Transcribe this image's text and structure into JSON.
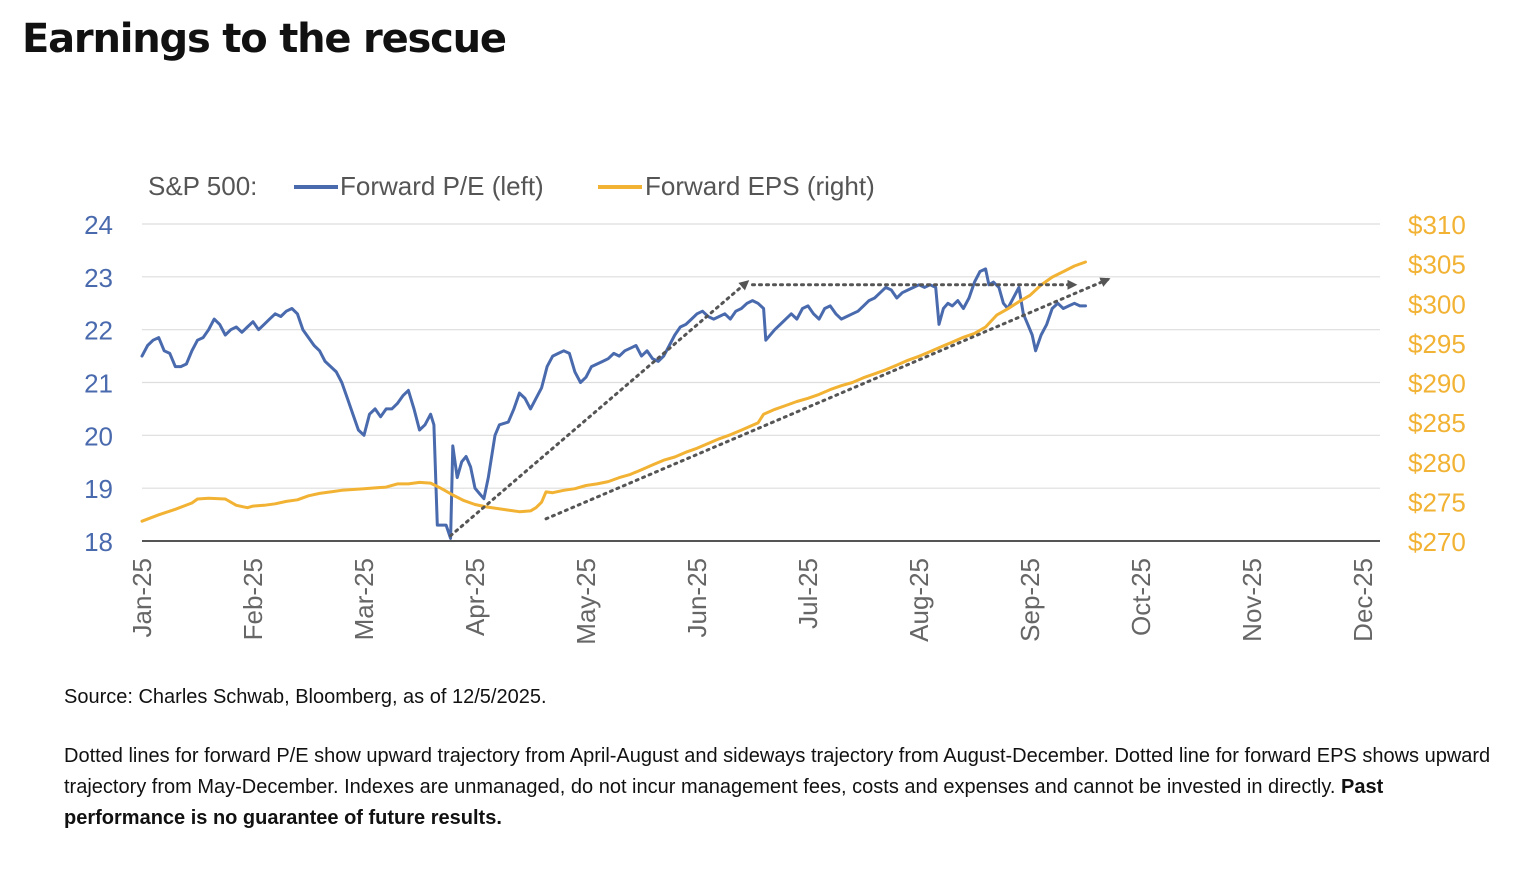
{
  "title": "Earnings to the rescue",
  "chart_data": {
    "type": "line",
    "legend": {
      "prefix": "S&P 500:",
      "placement": "top-left",
      "entries": [
        "Forward P/E (left)",
        "Forward EPS (right)"
      ]
    },
    "x_tick_labels": [
      "Jan-25",
      "Feb-25",
      "Mar-25",
      "Apr-25",
      "May-25",
      "Jun-25",
      "Jul-25",
      "Aug-25",
      "Sep-25",
      "Oct-25",
      "Nov-25",
      "Dec-25"
    ],
    "y_left": {
      "ylim": [
        18,
        24
      ],
      "ticks": [
        18,
        19,
        20,
        21,
        22,
        23,
        24
      ],
      "tick_labels": [
        "18",
        "19",
        "20",
        "21",
        "22",
        "23",
        "24"
      ]
    },
    "y_right": {
      "ylim": [
        270,
        310
      ],
      "ticks": [
        270,
        275,
        280,
        285,
        290,
        295,
        300,
        305,
        310
      ],
      "tick_labels": [
        "$270",
        "$275",
        "$280",
        "$285",
        "$290",
        "$295",
        "$300",
        "$305",
        "$310"
      ]
    },
    "grid": true,
    "colors": {
      "pe": "#4a6aae",
      "eps": "#f2b233",
      "axis_left": "#4a6aae",
      "axis_right": "#f2b233",
      "tick_x": "#666666",
      "grid": "#dddddd",
      "trend": "#555555"
    },
    "series": [
      {
        "name": "Forward P/E (left)",
        "axis": "left",
        "points": [
          [
            0,
            21.5
          ],
          [
            0.05,
            21.7
          ],
          [
            0.1,
            21.8
          ],
          [
            0.15,
            21.85
          ],
          [
            0.2,
            21.6
          ],
          [
            0.25,
            21.55
          ],
          [
            0.3,
            21.3
          ],
          [
            0.35,
            21.3
          ],
          [
            0.4,
            21.35
          ],
          [
            0.45,
            21.6
          ],
          [
            0.5,
            21.8
          ],
          [
            0.55,
            21.85
          ],
          [
            0.6,
            22.0
          ],
          [
            0.65,
            22.2
          ],
          [
            0.7,
            22.1
          ],
          [
            0.75,
            21.9
          ],
          [
            0.8,
            22.0
          ],
          [
            0.85,
            22.05
          ],
          [
            0.9,
            21.95
          ],
          [
            0.95,
            22.05
          ],
          [
            1.0,
            22.15
          ],
          [
            1.05,
            22.0
          ],
          [
            1.1,
            22.1
          ],
          [
            1.15,
            22.2
          ],
          [
            1.2,
            22.3
          ],
          [
            1.25,
            22.25
          ],
          [
            1.3,
            22.35
          ],
          [
            1.35,
            22.4
          ],
          [
            1.4,
            22.3
          ],
          [
            1.45,
            22.0
          ],
          [
            1.5,
            21.85
          ],
          [
            1.55,
            21.7
          ],
          [
            1.6,
            21.6
          ],
          [
            1.65,
            21.4
          ],
          [
            1.7,
            21.3
          ],
          [
            1.75,
            21.2
          ],
          [
            1.8,
            21.0
          ],
          [
            1.85,
            20.7
          ],
          [
            1.9,
            20.4
          ],
          [
            1.95,
            20.1
          ],
          [
            2.0,
            20.0
          ],
          [
            2.05,
            20.4
          ],
          [
            2.1,
            20.5
          ],
          [
            2.15,
            20.35
          ],
          [
            2.2,
            20.5
          ],
          [
            2.25,
            20.5
          ],
          [
            2.3,
            20.6
          ],
          [
            2.35,
            20.75
          ],
          [
            2.4,
            20.85
          ],
          [
            2.45,
            20.5
          ],
          [
            2.5,
            20.1
          ],
          [
            2.55,
            20.2
          ],
          [
            2.6,
            20.4
          ],
          [
            2.63,
            20.2
          ],
          [
            2.66,
            18.3
          ],
          [
            2.7,
            18.3
          ],
          [
            2.74,
            18.3
          ],
          [
            2.78,
            18.05
          ],
          [
            2.8,
            19.8
          ],
          [
            2.84,
            19.2
          ],
          [
            2.88,
            19.5
          ],
          [
            2.92,
            19.6
          ],
          [
            2.96,
            19.4
          ],
          [
            3.0,
            19.0
          ],
          [
            3.04,
            18.9
          ],
          [
            3.08,
            18.8
          ],
          [
            3.12,
            19.2
          ],
          [
            3.18,
            20.0
          ],
          [
            3.22,
            20.2
          ],
          [
            3.3,
            20.25
          ],
          [
            3.35,
            20.5
          ],
          [
            3.4,
            20.8
          ],
          [
            3.45,
            20.7
          ],
          [
            3.5,
            20.5
          ],
          [
            3.55,
            20.7
          ],
          [
            3.6,
            20.9
          ],
          [
            3.65,
            21.3
          ],
          [
            3.7,
            21.5
          ],
          [
            3.75,
            21.55
          ],
          [
            3.8,
            21.6
          ],
          [
            3.85,
            21.55
          ],
          [
            3.9,
            21.2
          ],
          [
            3.95,
            21.0
          ],
          [
            4.0,
            21.1
          ],
          [
            4.05,
            21.3
          ],
          [
            4.1,
            21.35
          ],
          [
            4.15,
            21.4
          ],
          [
            4.2,
            21.45
          ],
          [
            4.25,
            21.55
          ],
          [
            4.3,
            21.5
          ],
          [
            4.35,
            21.6
          ],
          [
            4.4,
            21.65
          ],
          [
            4.45,
            21.7
          ],
          [
            4.5,
            21.5
          ],
          [
            4.55,
            21.6
          ],
          [
            4.6,
            21.45
          ],
          [
            4.65,
            21.4
          ],
          [
            4.7,
            21.5
          ],
          [
            4.75,
            21.7
          ],
          [
            4.8,
            21.9
          ],
          [
            4.85,
            22.05
          ],
          [
            4.9,
            22.1
          ],
          [
            4.95,
            22.2
          ],
          [
            5.0,
            22.3
          ],
          [
            5.05,
            22.35
          ],
          [
            5.1,
            22.25
          ],
          [
            5.15,
            22.2
          ],
          [
            5.2,
            22.25
          ],
          [
            5.25,
            22.3
          ],
          [
            5.3,
            22.2
          ],
          [
            5.35,
            22.35
          ],
          [
            5.4,
            22.4
          ],
          [
            5.45,
            22.5
          ],
          [
            5.5,
            22.55
          ],
          [
            5.55,
            22.5
          ],
          [
            5.6,
            22.4
          ],
          [
            5.62,
            21.8
          ],
          [
            5.7,
            22.0
          ],
          [
            5.75,
            22.1
          ],
          [
            5.8,
            22.2
          ],
          [
            5.85,
            22.3
          ],
          [
            5.9,
            22.2
          ],
          [
            5.95,
            22.4
          ],
          [
            6.0,
            22.45
          ],
          [
            6.05,
            22.3
          ],
          [
            6.1,
            22.2
          ],
          [
            6.15,
            22.4
          ],
          [
            6.2,
            22.45
          ],
          [
            6.25,
            22.3
          ],
          [
            6.3,
            22.2
          ],
          [
            6.35,
            22.25
          ],
          [
            6.4,
            22.3
          ],
          [
            6.45,
            22.35
          ],
          [
            6.5,
            22.45
          ],
          [
            6.55,
            22.55
          ],
          [
            6.6,
            22.6
          ],
          [
            6.65,
            22.7
          ],
          [
            6.7,
            22.8
          ],
          [
            6.75,
            22.75
          ],
          [
            6.8,
            22.6
          ],
          [
            6.85,
            22.7
          ],
          [
            6.9,
            22.75
          ],
          [
            6.95,
            22.8
          ],
          [
            7.0,
            22.85
          ],
          [
            7.05,
            22.8
          ],
          [
            7.1,
            22.85
          ],
          [
            7.15,
            22.8
          ],
          [
            7.18,
            22.1
          ],
          [
            7.22,
            22.4
          ],
          [
            7.26,
            22.5
          ],
          [
            7.3,
            22.45
          ],
          [
            7.35,
            22.55
          ],
          [
            7.4,
            22.4
          ],
          [
            7.45,
            22.6
          ],
          [
            7.5,
            22.9
          ],
          [
            7.55,
            23.1
          ],
          [
            7.6,
            23.15
          ],
          [
            7.63,
            22.85
          ],
          [
            7.67,
            22.9
          ],
          [
            7.72,
            22.8
          ],
          [
            7.76,
            22.5
          ],
          [
            7.8,
            22.4
          ],
          [
            7.85,
            22.6
          ],
          [
            7.9,
            22.8
          ],
          [
            7.94,
            22.3
          ],
          [
            7.98,
            22.1
          ],
          [
            8.02,
            21.9
          ],
          [
            8.05,
            21.6
          ],
          [
            8.1,
            21.9
          ],
          [
            8.15,
            22.1
          ],
          [
            8.2,
            22.4
          ],
          [
            8.25,
            22.5
          ],
          [
            8.3,
            22.4
          ],
          [
            8.35,
            22.45
          ],
          [
            8.4,
            22.5
          ],
          [
            8.45,
            22.45
          ],
          [
            8.5,
            22.45
          ]
        ]
      },
      {
        "name": "Forward EPS (right)",
        "axis": "right",
        "points": [
          [
            0,
            272.5
          ],
          [
            0.15,
            273.3
          ],
          [
            0.3,
            274.0
          ],
          [
            0.45,
            274.8
          ],
          [
            0.5,
            275.3
          ],
          [
            0.6,
            275.4
          ],
          [
            0.75,
            275.3
          ],
          [
            0.85,
            274.5
          ],
          [
            0.95,
            274.2
          ],
          [
            1.0,
            274.4
          ],
          [
            1.1,
            274.5
          ],
          [
            1.2,
            274.7
          ],
          [
            1.3,
            275.0
          ],
          [
            1.4,
            275.2
          ],
          [
            1.5,
            275.7
          ],
          [
            1.6,
            276.0
          ],
          [
            1.7,
            276.2
          ],
          [
            1.8,
            276.4
          ],
          [
            1.9,
            276.5
          ],
          [
            2.0,
            276.6
          ],
          [
            2.1,
            276.7
          ],
          [
            2.2,
            276.8
          ],
          [
            2.3,
            277.2
          ],
          [
            2.4,
            277.2
          ],
          [
            2.5,
            277.4
          ],
          [
            2.6,
            277.3
          ],
          [
            2.7,
            276.6
          ],
          [
            2.8,
            275.8
          ],
          [
            2.9,
            275.1
          ],
          [
            3.0,
            274.6
          ],
          [
            3.1,
            274.3
          ],
          [
            3.2,
            274.1
          ],
          [
            3.3,
            273.9
          ],
          [
            3.4,
            273.7
          ],
          [
            3.5,
            273.8
          ],
          [
            3.55,
            274.2
          ],
          [
            3.6,
            274.9
          ],
          [
            3.64,
            276.2
          ],
          [
            3.7,
            276.1
          ],
          [
            3.8,
            276.4
          ],
          [
            3.9,
            276.6
          ],
          [
            4.0,
            277.0
          ],
          [
            4.1,
            277.2
          ],
          [
            4.2,
            277.5
          ],
          [
            4.3,
            278.0
          ],
          [
            4.4,
            278.4
          ],
          [
            4.5,
            279.0
          ],
          [
            4.6,
            279.6
          ],
          [
            4.7,
            280.2
          ],
          [
            4.8,
            280.6
          ],
          [
            4.9,
            281.2
          ],
          [
            5.0,
            281.7
          ],
          [
            5.1,
            282.3
          ],
          [
            5.2,
            282.9
          ],
          [
            5.3,
            283.4
          ],
          [
            5.4,
            284.0
          ],
          [
            5.5,
            284.6
          ],
          [
            5.55,
            284.9
          ],
          [
            5.6,
            286.0
          ],
          [
            5.7,
            286.6
          ],
          [
            5.8,
            287.1
          ],
          [
            5.9,
            287.6
          ],
          [
            6.0,
            288.0
          ],
          [
            6.1,
            288.5
          ],
          [
            6.2,
            289.1
          ],
          [
            6.3,
            289.6
          ],
          [
            6.4,
            290.0
          ],
          [
            6.5,
            290.6
          ],
          [
            6.6,
            291.1
          ],
          [
            6.7,
            291.6
          ],
          [
            6.8,
            292.2
          ],
          [
            6.9,
            292.8
          ],
          [
            7.0,
            293.3
          ],
          [
            7.1,
            293.9
          ],
          [
            7.2,
            294.5
          ],
          [
            7.3,
            295.1
          ],
          [
            7.4,
            295.7
          ],
          [
            7.5,
            296.2
          ],
          [
            7.6,
            297.0
          ],
          [
            7.7,
            298.5
          ],
          [
            7.8,
            299.3
          ],
          [
            7.9,
            300.2
          ],
          [
            8.0,
            301.0
          ],
          [
            8.1,
            302.3
          ],
          [
            8.2,
            303.3
          ],
          [
            8.3,
            304.0
          ],
          [
            8.4,
            304.7
          ],
          [
            8.5,
            305.2
          ]
        ]
      }
    ],
    "trend_lines": [
      {
        "axis": "left",
        "from": [
          2.78,
          18.1
        ],
        "to": [
          5.45,
          22.9
        ],
        "arrow": true
      },
      {
        "axis": "left",
        "from": [
          5.5,
          22.85
        ],
        "to": [
          8.4,
          22.85
        ],
        "arrow": true
      },
      {
        "axis": "right",
        "from": [
          3.64,
          272.8
        ],
        "to": [
          8.7,
          303.0
        ],
        "arrow": true
      }
    ]
  },
  "source": "Source: Charles Schwab, Bloomberg, as of 12/5/2025.",
  "notes": "Dotted lines for forward P/E show upward trajectory from April-August and sideways trajectory from August-December. Dotted line for forward EPS shows upward trajectory from May-December. Indexes are unmanaged, do not incur management fees, costs and expenses and cannot be invested in directly.",
  "disclaimer": "Past performance is no guarantee of future results."
}
